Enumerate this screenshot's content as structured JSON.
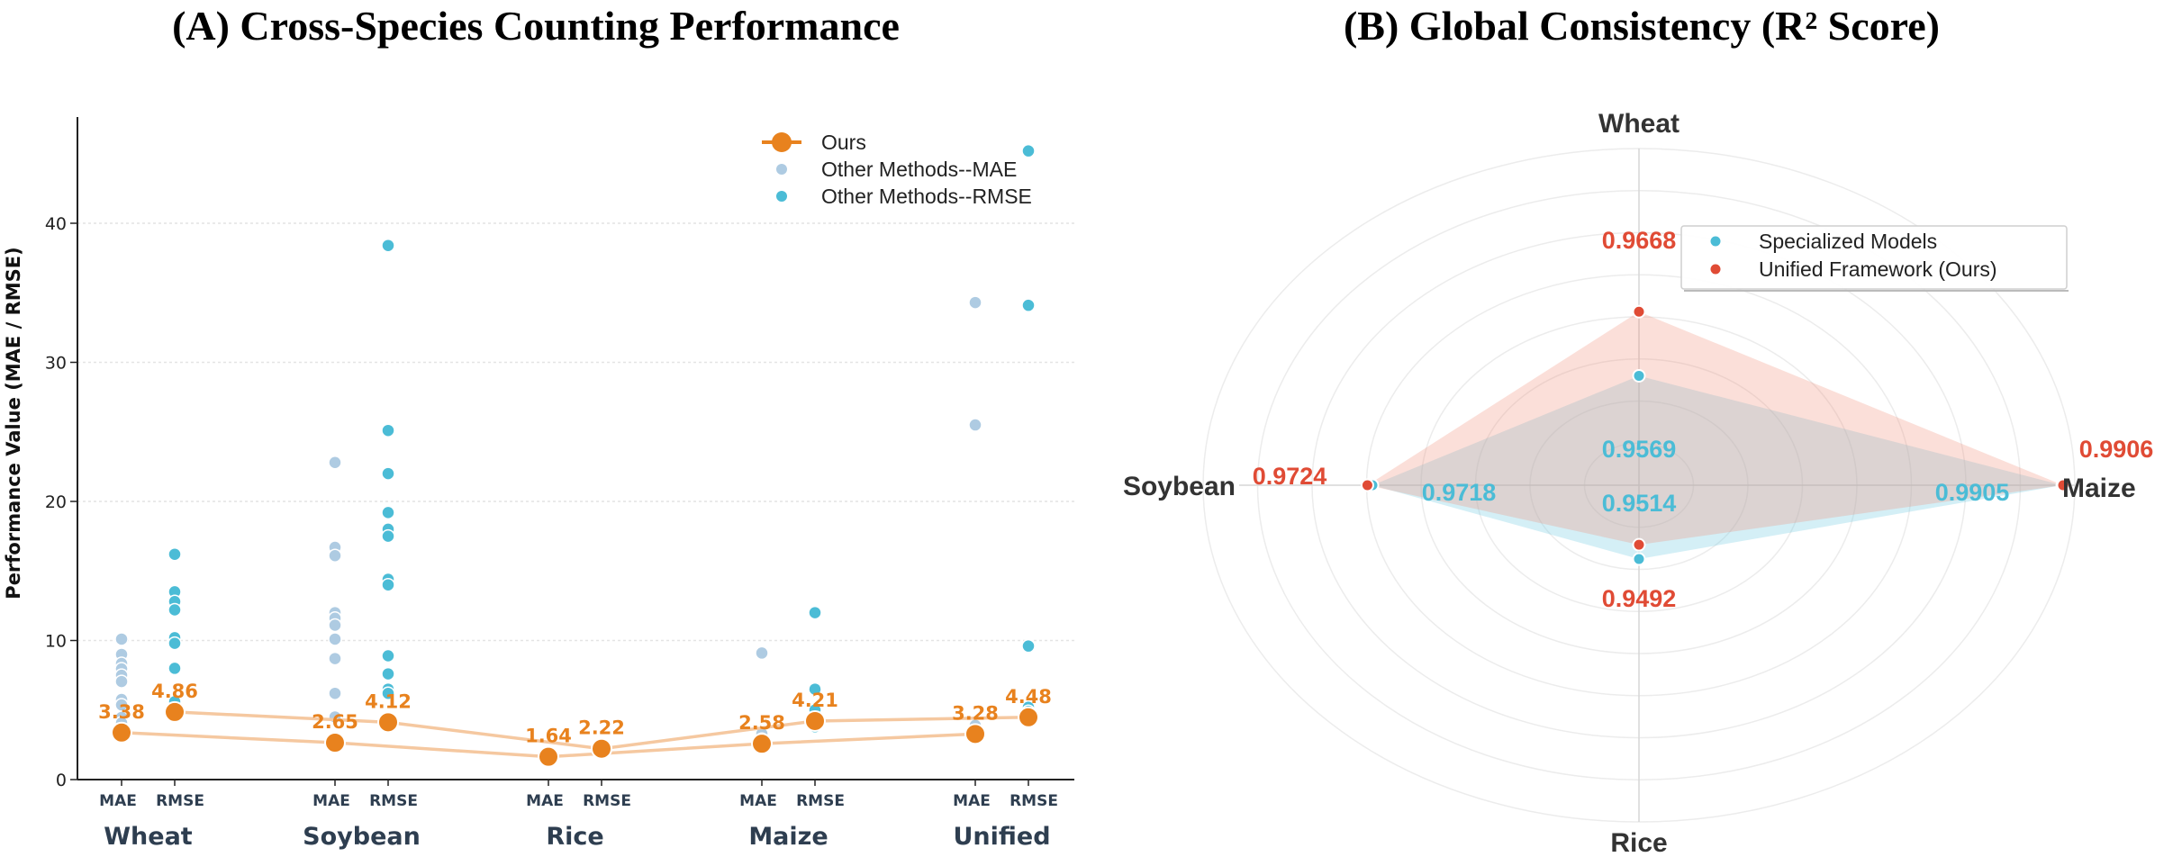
{
  "chart_data": [
    {
      "type": "scatter",
      "title": "(A) Cross-Species Counting Performance",
      "ylabel": "Performance Value (MAE / RMSE)",
      "ylim": [
        0,
        47.5
      ],
      "yticks": [
        0,
        10,
        20,
        30,
        40
      ],
      "grid": "horizontal dotted",
      "legend_position": "top-right",
      "categories": [
        "Wheat",
        "Soybean",
        "Rice",
        "Maize",
        "Unified"
      ],
      "sub_labels": [
        "MAE",
        "RMSE"
      ],
      "legend": [
        "Ours",
        "Other Methods--MAE",
        "Other Methods--RMSE"
      ],
      "colors": {
        "ours": "#e8821e",
        "ours_line": "#f5c8a0",
        "mae": "#aecbe2",
        "rmse": "#4bbcd6"
      },
      "ours": {
        "MAE": [
          3.38,
          2.65,
          1.64,
          2.58,
          3.28
        ],
        "RMSE": [
          4.86,
          4.12,
          2.22,
          4.21,
          4.48
        ],
        "MAE_labels": [
          "3.38",
          "2.65",
          "1.64",
          "2.58",
          "3.28"
        ],
        "RMSE_labels": [
          "4.86",
          "4.12",
          "2.22",
          "4.21",
          "4.48"
        ]
      },
      "other_methods_mae": [
        [
          10.1,
          9.0,
          8.35,
          7.96,
          7.5,
          7.05,
          5.76,
          5.37,
          4.47,
          4.08
        ],
        [
          22.8,
          16.7,
          16.1,
          12.0,
          11.6,
          11.1,
          10.1,
          8.7,
          6.2,
          4.5
        ],
        [],
        [
          9.1,
          3.3,
          2.9
        ],
        [
          34.3,
          25.5,
          3.9
        ]
      ],
      "other_methods_rmse": [
        [
          16.2,
          13.5,
          12.8,
          12.2,
          10.2,
          9.8,
          8.0,
          5.6
        ],
        [
          38.4,
          25.1,
          22.0,
          19.2,
          18.0,
          17.5,
          14.4,
          14.0,
          8.9,
          7.6,
          6.5,
          6.2
        ],
        [],
        [
          12.0,
          6.5,
          5.0,
          3.8
        ],
        [
          45.2,
          34.1,
          9.6,
          5.2,
          4.9
        ]
      ]
    },
    {
      "type": "radar",
      "title": "(B) Global Consistency (R² Score)",
      "axes": [
        "Wheat",
        "Maize",
        "Rice",
        "Soybean"
      ],
      "radial_range": [
        0.94,
        0.992
      ],
      "legend_position": "top-right",
      "series": [
        {
          "name": "Specialized Models",
          "color": "#4bbcd6",
          "values": [
            0.9569,
            0.9905,
            0.9514,
            0.9718
          ],
          "labels": [
            "0.9569",
            "0.9905",
            "0.9514",
            "0.9718"
          ]
        },
        {
          "name": "Unified Framework (Ours)",
          "color": "#e04b35",
          "values": [
            0.9668,
            0.9906,
            0.9492,
            0.9724
          ],
          "labels": [
            "0.9668",
            "0.9906",
            "0.9492",
            "0.9724"
          ]
        }
      ]
    }
  ]
}
